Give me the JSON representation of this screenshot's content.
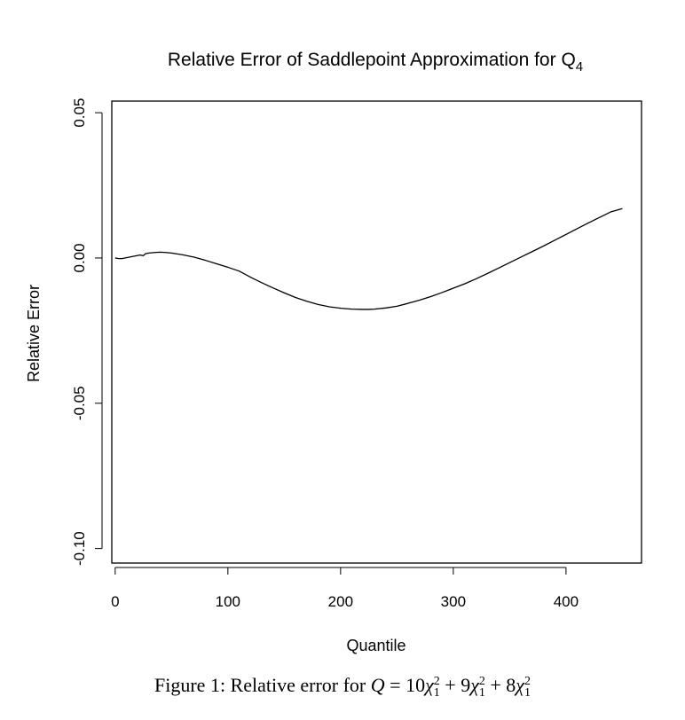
{
  "chart_data": {
    "type": "line",
    "title_main": "Relative Error of Saddlepoint Approximation for Q",
    "title_sub": "4",
    "xlabel": "Quantile",
    "ylabel": "Relative Error",
    "xlim": [
      -3,
      467
    ],
    "ylim": [
      -0.105,
      0.054
    ],
    "xticks": [
      0,
      100,
      200,
      300,
      400
    ],
    "xtick_labels": [
      "0",
      "100",
      "200",
      "300",
      "400"
    ],
    "yticks": [
      -0.1,
      -0.05,
      0.0,
      0.05
    ],
    "ytick_labels": [
      "-0.10",
      "-0.05",
      "0.00",
      "0.05"
    ],
    "grid": false,
    "series": [
      {
        "color": "#000000",
        "x": [
          0,
          3,
          6,
          10,
          14,
          18,
          22,
          25,
          27,
          30,
          35,
          40,
          45,
          50,
          60,
          70,
          80,
          90,
          100,
          110,
          120,
          130,
          140,
          150,
          160,
          170,
          180,
          190,
          200,
          210,
          220,
          225,
          230,
          240,
          250,
          260,
          270,
          280,
          290,
          300,
          310,
          320,
          330,
          340,
          350,
          360,
          370,
          380,
          390,
          400,
          410,
          420,
          430,
          440,
          450
        ],
        "y": [
          0.0,
          -0.0002,
          -0.0002,
          0.0001,
          0.0004,
          0.0007,
          0.001,
          0.0008,
          0.0015,
          0.0017,
          0.0019,
          0.002,
          0.0019,
          0.0017,
          0.0011,
          0.0003,
          -0.0008,
          -0.002,
          -0.0032,
          -0.0045,
          -0.0066,
          -0.0085,
          -0.0103,
          -0.012,
          -0.0136,
          -0.0149,
          -0.016,
          -0.0168,
          -0.0173,
          -0.0176,
          -0.0177,
          -0.0177,
          -0.0176,
          -0.0172,
          -0.0166,
          -0.0156,
          -0.0145,
          -0.0133,
          -0.0119,
          -0.0104,
          -0.0089,
          -0.0072,
          -0.0054,
          -0.0035,
          -0.0016,
          0.0003,
          0.0022,
          0.0041,
          0.0061,
          0.0081,
          0.0101,
          0.0121,
          0.014,
          0.0159,
          0.017
        ]
      }
    ]
  },
  "caption": {
    "prefix": "Figure 1:  Relative error for ",
    "var": "Q",
    "rhs": [
      {
        "coef": "10",
        "chi": "χ",
        "sub": "1",
        "sup": "2"
      },
      {
        "op": " + ",
        "coef": "9",
        "chi": "χ",
        "sub": "1",
        "sup": "2"
      },
      {
        "op": " + ",
        "coef": "8",
        "chi": "χ",
        "sub": "1",
        "sup": "2"
      }
    ]
  }
}
